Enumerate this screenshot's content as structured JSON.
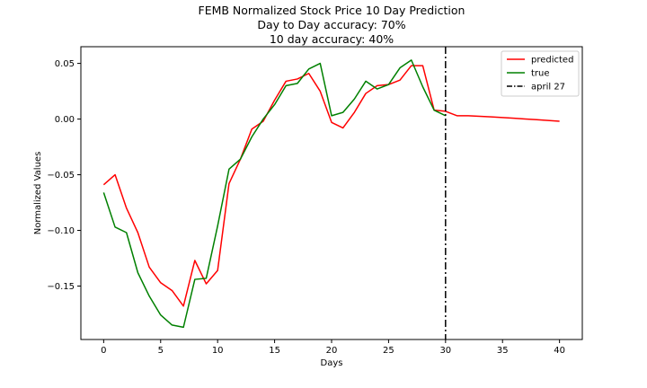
{
  "chart_data": {
    "type": "line",
    "title": "FEMB Normalized Stock Price 10 Day Prediction",
    "subtitle_lines": [
      "Day to Day accuracy: 70%",
      "10 day accuracy: 40%"
    ],
    "xlabel": "Days",
    "ylabel": "Normalized Values",
    "xlim": [
      -2,
      42
    ],
    "ylim": [
      -0.198,
      0.065
    ],
    "xticks": [
      0,
      5,
      10,
      15,
      20,
      25,
      30,
      35,
      40
    ],
    "xtick_labels": [
      "0",
      "5",
      "10",
      "15",
      "20",
      "25",
      "30",
      "35",
      "40"
    ],
    "yticks": [
      0.05,
      0.0,
      -0.05,
      -0.1,
      -0.15
    ],
    "ytick_labels": [
      "0.05",
      "0.00",
      "−0.05",
      "−0.10",
      "−0.15"
    ],
    "series": [
      {
        "name": "predicted",
        "color": "#ff0000",
        "style": "solid",
        "x": [
          0,
          1,
          2,
          3,
          4,
          5,
          6,
          7,
          8,
          9,
          10,
          11,
          12,
          13,
          14,
          15,
          16,
          17,
          18,
          19,
          20,
          21,
          22,
          23,
          24,
          25,
          26,
          27,
          28,
          29,
          30,
          31,
          32,
          33,
          34,
          35,
          36,
          37,
          38,
          39,
          40
        ],
        "y": [
          -0.059,
          -0.05,
          -0.08,
          -0.102,
          -0.133,
          -0.147,
          -0.154,
          -0.168,
          -0.127,
          -0.148,
          -0.136,
          -0.058,
          -0.036,
          -0.009,
          -0.002,
          0.017,
          0.034,
          0.036,
          0.041,
          0.025,
          -0.003,
          -0.008,
          0.006,
          0.023,
          0.03,
          0.031,
          0.035,
          0.048,
          0.048,
          0.008,
          0.007,
          0.003,
          0.003,
          0.0025,
          0.002,
          0.0014,
          0.0008,
          0.0001,
          -0.0006,
          -0.0013,
          -0.002
        ]
      },
      {
        "name": "true",
        "color": "#008000",
        "style": "solid",
        "x": [
          0,
          1,
          2,
          3,
          4,
          5,
          6,
          7,
          8,
          9,
          10,
          11,
          12,
          13,
          14,
          15,
          16,
          17,
          18,
          19,
          20,
          21,
          22,
          23,
          24,
          25,
          26,
          27,
          28,
          29,
          30
        ],
        "y": [
          -0.066,
          -0.097,
          -0.102,
          -0.138,
          -0.159,
          -0.176,
          -0.185,
          -0.187,
          -0.144,
          -0.143,
          -0.096,
          -0.045,
          -0.036,
          -0.016,
          0.0,
          0.013,
          0.03,
          0.032,
          0.045,
          0.05,
          0.003,
          0.006,
          0.018,
          0.034,
          0.027,
          0.031,
          0.046,
          0.053,
          0.029,
          0.008,
          0.003
        ]
      }
    ],
    "vline": {
      "name": "april 27",
      "x": 30,
      "color": "#000000",
      "style": "dashdot"
    },
    "legend_position": "top-right",
    "grid": false
  }
}
